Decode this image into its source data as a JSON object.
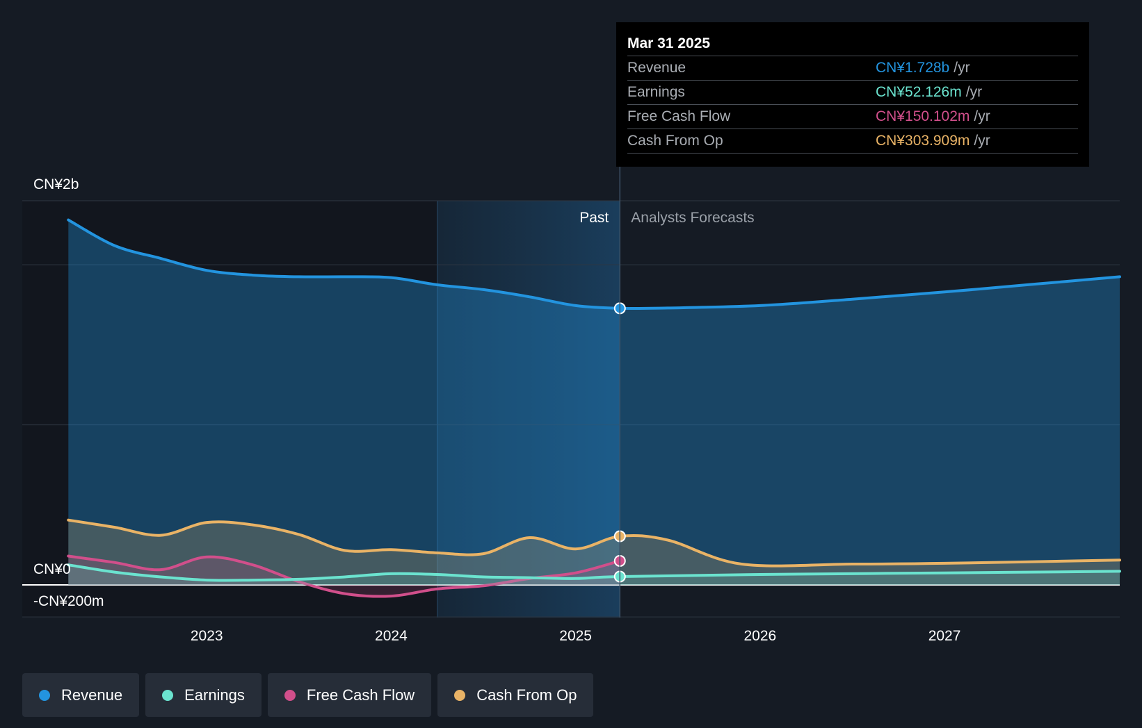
{
  "colors": {
    "background": "#151b24",
    "revenue": "#2394df",
    "earnings": "#6be3cf",
    "free_cash_flow": "#d14f8b",
    "cash_from_op": "#e9b366"
  },
  "tooltip": {
    "date": "Mar 31 2025",
    "unit": "/yr",
    "rows": [
      {
        "label": "Revenue",
        "value": "CN¥1.728b"
      },
      {
        "label": "Earnings",
        "value": "CN¥52.126m"
      },
      {
        "label": "Free Cash Flow",
        "value": "CN¥150.102m"
      },
      {
        "label": "Cash From Op",
        "value": "CN¥303.909m"
      }
    ]
  },
  "legend": [
    {
      "label": "Revenue",
      "color": "#2394df"
    },
    {
      "label": "Earnings",
      "color": "#6be3cf"
    },
    {
      "label": "Free Cash Flow",
      "color": "#d14f8b"
    },
    {
      "label": "Cash From Op",
      "color": "#e9b366"
    }
  ],
  "chart_data": {
    "type": "area",
    "ylim": [
      -200,
      2400
    ],
    "xlim": [
      2022.0,
      2027.95
    ],
    "y_tick_labels": [
      {
        "value": 2400,
        "label": "CN¥2b"
      },
      {
        "value": 0,
        "label": "CN¥0"
      },
      {
        "value": -200,
        "label": "-CN¥200m"
      }
    ],
    "gridlines": [
      2400,
      2000,
      1000,
      0,
      -200
    ],
    "x_ticks": [
      {
        "value": 2023,
        "label": "2023"
      },
      {
        "value": 2024,
        "label": "2024"
      },
      {
        "value": 2025,
        "label": "2025"
      },
      {
        "value": 2026,
        "label": "2026"
      },
      {
        "value": 2027,
        "label": "2027"
      }
    ],
    "past_label": "Past",
    "forecast_label": "Analysts Forecasts",
    "divider_x": 2025.24,
    "highlight_start_x": 2024.25,
    "series": [
      {
        "name": "Revenue",
        "key": "revenue",
        "fill": true,
        "past": [
          [
            2022.25,
            2280
          ],
          [
            2022.5,
            2120
          ],
          [
            2022.75,
            2040
          ],
          [
            2023.0,
            1965
          ],
          [
            2023.25,
            1935
          ],
          [
            2023.5,
            1925
          ],
          [
            2023.75,
            1925
          ],
          [
            2024.0,
            1920
          ],
          [
            2024.25,
            1875
          ],
          [
            2024.5,
            1845
          ],
          [
            2024.75,
            1800
          ],
          [
            2025.0,
            1745
          ],
          [
            2025.24,
            1728
          ]
        ],
        "forecast": [
          [
            2025.24,
            1728
          ],
          [
            2025.5,
            1730
          ],
          [
            2026.0,
            1745
          ],
          [
            2026.5,
            1785
          ],
          [
            2027.0,
            1830
          ],
          [
            2027.5,
            1880
          ],
          [
            2027.95,
            1925
          ]
        ]
      },
      {
        "name": "Cash From Op",
        "key": "cash_from_op",
        "fill": true,
        "past": [
          [
            2022.25,
            405
          ],
          [
            2022.5,
            360
          ],
          [
            2022.75,
            310
          ],
          [
            2023.0,
            390
          ],
          [
            2023.25,
            375
          ],
          [
            2023.5,
            315
          ],
          [
            2023.75,
            215
          ],
          [
            2024.0,
            220
          ],
          [
            2024.25,
            200
          ],
          [
            2024.5,
            195
          ],
          [
            2024.75,
            295
          ],
          [
            2025.0,
            225
          ],
          [
            2025.24,
            304
          ]
        ],
        "forecast": [
          [
            2025.24,
            304
          ],
          [
            2025.5,
            280
          ],
          [
            2025.9,
            130
          ],
          [
            2026.5,
            130
          ],
          [
            2027.0,
            135
          ],
          [
            2027.95,
            155
          ]
        ]
      },
      {
        "name": "Free Cash Flow",
        "key": "free_cash_flow",
        "fill": true,
        "past": [
          [
            2022.25,
            180
          ],
          [
            2022.5,
            140
          ],
          [
            2022.75,
            95
          ],
          [
            2023.0,
            175
          ],
          [
            2023.25,
            125
          ],
          [
            2023.5,
            20
          ],
          [
            2023.75,
            -55
          ],
          [
            2024.0,
            -70
          ],
          [
            2024.25,
            -25
          ],
          [
            2024.5,
            -5
          ],
          [
            2024.75,
            40
          ],
          [
            2025.0,
            75
          ],
          [
            2025.24,
            150
          ]
        ],
        "forecast": []
      },
      {
        "name": "Earnings",
        "key": "earnings",
        "fill": true,
        "past": [
          [
            2022.25,
            125
          ],
          [
            2022.5,
            80
          ],
          [
            2022.75,
            50
          ],
          [
            2023.0,
            30
          ],
          [
            2023.25,
            30
          ],
          [
            2023.5,
            35
          ],
          [
            2023.75,
            50
          ],
          [
            2024.0,
            70
          ],
          [
            2024.25,
            65
          ],
          [
            2024.5,
            50
          ],
          [
            2024.75,
            45
          ],
          [
            2025.0,
            40
          ],
          [
            2025.24,
            52
          ]
        ],
        "forecast": [
          [
            2025.24,
            52
          ],
          [
            2026.0,
            65
          ],
          [
            2027.0,
            75
          ],
          [
            2027.95,
            85
          ]
        ]
      }
    ]
  }
}
